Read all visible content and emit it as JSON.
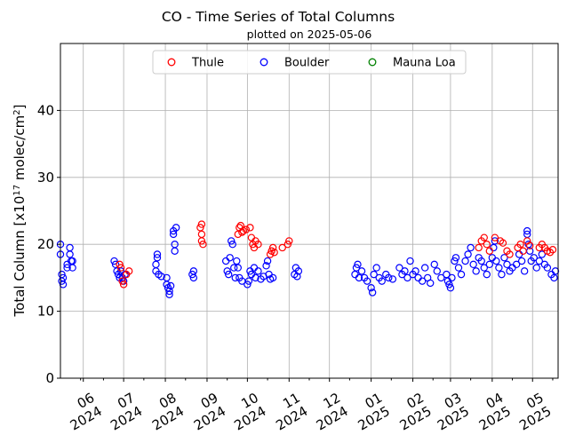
{
  "chart_data": {
    "type": "scatter",
    "title": "CO - Time Series of Total Columns",
    "subtitle": "plotted on 2025-05-06",
    "ylabel": "Total Column [x10",
    "ylabel_sup1": "17",
    "ylabel_mid": " molec/cm",
    "ylabel_sup2": "2",
    "ylabel_end": "]",
    "xlabel": "",
    "ylim": [
      0,
      50
    ],
    "yticks": [
      0,
      10,
      20,
      30,
      40
    ],
    "xlim": [
      "2024-05-15",
      "2025-05-20"
    ],
    "xticks": [
      {
        "date": "2024-06-01",
        "month": "06",
        "year": "2024"
      },
      {
        "date": "2024-07-01",
        "month": "07",
        "year": "2024"
      },
      {
        "date": "2024-08-01",
        "month": "08",
        "year": "2024"
      },
      {
        "date": "2024-09-01",
        "month": "09",
        "year": "2024"
      },
      {
        "date": "2024-10-01",
        "month": "10",
        "year": "2024"
      },
      {
        "date": "2024-11-01",
        "month": "11",
        "year": "2024"
      },
      {
        "date": "2024-12-01",
        "month": "12",
        "year": "2024"
      },
      {
        "date": "2025-01-01",
        "month": "01",
        "year": "2025"
      },
      {
        "date": "2025-02-01",
        "month": "02",
        "year": "2025"
      },
      {
        "date": "2025-03-01",
        "month": "03",
        "year": "2025"
      },
      {
        "date": "2025-04-01",
        "month": "04",
        "year": "2025"
      },
      {
        "date": "2025-05-01",
        "month": "05",
        "year": "2025"
      }
    ],
    "grid": true,
    "legend_position": "top-center",
    "series": [
      {
        "name": "Thule",
        "color": "#ff0000",
        "points": [
          [
            "2024-06-28",
            17.0
          ],
          [
            "2024-06-29",
            16.5
          ],
          [
            "2024-06-30",
            14.5
          ],
          [
            "2024-07-01",
            14.0
          ],
          [
            "2024-07-03",
            15.5
          ],
          [
            "2024-07-05",
            16.0
          ],
          [
            "2024-08-27",
            22.5
          ],
          [
            "2024-08-28",
            21.5
          ],
          [
            "2024-08-28",
            20.5
          ],
          [
            "2024-08-29",
            20.0
          ],
          [
            "2024-08-28",
            23.0
          ],
          [
            "2024-09-24",
            21.5
          ],
          [
            "2024-09-25",
            22.5
          ],
          [
            "2024-09-26",
            22.8
          ],
          [
            "2024-09-27",
            21.8
          ],
          [
            "2024-09-28",
            22.0
          ],
          [
            "2024-09-30",
            22.2
          ],
          [
            "2024-10-03",
            22.5
          ],
          [
            "2024-10-04",
            21.0
          ],
          [
            "2024-10-05",
            20.0
          ],
          [
            "2024-10-06",
            19.5
          ],
          [
            "2024-10-07",
            20.5
          ],
          [
            "2024-10-09",
            20.0
          ],
          [
            "2024-10-18",
            18.5
          ],
          [
            "2024-10-19",
            19.0
          ],
          [
            "2024-10-20",
            19.5
          ],
          [
            "2024-10-21",
            18.8
          ],
          [
            "2024-10-27",
            19.5
          ],
          [
            "2024-10-31",
            20.0
          ],
          [
            "2024-11-01",
            20.5
          ],
          [
            "2025-03-22",
            19.5
          ],
          [
            "2025-03-24",
            20.5
          ],
          [
            "2025-03-26",
            21.0
          ],
          [
            "2025-03-28",
            20.0
          ],
          [
            "2025-03-30",
            19.0
          ],
          [
            "2025-04-03",
            21.0
          ],
          [
            "2025-04-07",
            20.5
          ],
          [
            "2025-04-09",
            20.2
          ],
          [
            "2025-04-12",
            19.0
          ],
          [
            "2025-04-14",
            18.5
          ],
          [
            "2025-04-20",
            19.5
          ],
          [
            "2025-04-22",
            20.0
          ],
          [
            "2025-04-24",
            19.0
          ],
          [
            "2025-04-27",
            20.5
          ],
          [
            "2025-04-29",
            19.8
          ],
          [
            "2025-05-06",
            19.5
          ],
          [
            "2025-05-08",
            20.0
          ],
          [
            "2025-05-10",
            19.5
          ],
          [
            "2025-05-12",
            19.0
          ],
          [
            "2025-05-14",
            18.8
          ],
          [
            "2025-05-16",
            19.2
          ]
        ]
      },
      {
        "name": "Boulder",
        "color": "#0000ff",
        "points": [
          [
            "2024-05-15",
            20.0
          ],
          [
            "2024-05-15",
            18.5
          ],
          [
            "2024-05-16",
            15.5
          ],
          [
            "2024-05-16",
            14.5
          ],
          [
            "2024-05-17",
            14.0
          ],
          [
            "2024-05-17",
            15.0
          ],
          [
            "2024-05-20",
            17.0
          ],
          [
            "2024-05-20",
            16.5
          ],
          [
            "2024-05-22",
            19.5
          ],
          [
            "2024-05-22",
            18.5
          ],
          [
            "2024-05-23",
            17.5
          ],
          [
            "2024-05-24",
            16.5
          ],
          [
            "2024-05-24",
            17.5
          ],
          [
            "2024-06-24",
            17.5
          ],
          [
            "2024-06-25",
            17.0
          ],
          [
            "2024-06-26",
            16.0
          ],
          [
            "2024-06-27",
            15.5
          ],
          [
            "2024-06-28",
            15.0
          ],
          [
            "2024-06-29",
            16.0
          ],
          [
            "2024-06-30",
            15.0
          ],
          [
            "2024-07-01",
            14.5
          ],
          [
            "2024-07-02",
            15.5
          ],
          [
            "2024-07-25",
            16.0
          ],
          [
            "2024-07-25",
            17.0
          ],
          [
            "2024-07-26",
            18.5
          ],
          [
            "2024-07-26",
            18.0
          ],
          [
            "2024-07-27",
            15.5
          ],
          [
            "2024-07-29",
            15.2
          ],
          [
            "2024-08-02",
            15.0
          ],
          [
            "2024-08-02",
            14.0
          ],
          [
            "2024-08-03",
            13.5
          ],
          [
            "2024-08-04",
            13.0
          ],
          [
            "2024-08-04",
            12.5
          ],
          [
            "2024-08-05",
            13.8
          ],
          [
            "2024-08-07",
            22.0
          ],
          [
            "2024-08-07",
            21.5
          ],
          [
            "2024-08-08",
            19.0
          ],
          [
            "2024-08-08",
            20.0
          ],
          [
            "2024-08-09",
            22.5
          ],
          [
            "2024-08-21",
            15.5
          ],
          [
            "2024-08-22",
            16.0
          ],
          [
            "2024-08-22",
            15.0
          ],
          [
            "2024-09-15",
            17.5
          ],
          [
            "2024-09-16",
            16.0
          ],
          [
            "2024-09-17",
            15.5
          ],
          [
            "2024-09-18",
            18.0
          ],
          [
            "2024-09-19",
            20.5
          ],
          [
            "2024-09-20",
            20.0
          ],
          [
            "2024-09-21",
            16.5
          ],
          [
            "2024-09-22",
            15.0
          ],
          [
            "2024-09-23",
            17.5
          ],
          [
            "2024-09-24",
            16.5
          ],
          [
            "2024-09-25",
            15.0
          ],
          [
            "2024-09-27",
            14.5
          ],
          [
            "2024-10-01",
            14.0
          ],
          [
            "2024-10-02",
            14.5
          ],
          [
            "2024-10-03",
            16.0
          ],
          [
            "2024-10-04",
            15.5
          ],
          [
            "2024-10-06",
            16.5
          ],
          [
            "2024-10-07",
            15.0
          ],
          [
            "2024-10-09",
            16.0
          ],
          [
            "2024-10-11",
            14.8
          ],
          [
            "2024-10-13",
            15.2
          ],
          [
            "2024-10-15",
            16.8
          ],
          [
            "2024-10-16",
            17.5
          ],
          [
            "2024-10-17",
            15.5
          ],
          [
            "2024-10-18",
            14.8
          ],
          [
            "2024-10-20",
            15.0
          ],
          [
            "2024-11-05",
            15.5
          ],
          [
            "2024-11-06",
            16.5
          ],
          [
            "2024-11-07",
            15.2
          ],
          [
            "2024-11-08",
            16.0
          ],
          [
            "2024-12-20",
            15.5
          ],
          [
            "2024-12-21",
            16.5
          ],
          [
            "2024-12-22",
            17.0
          ],
          [
            "2024-12-23",
            15.0
          ],
          [
            "2024-12-25",
            16.0
          ],
          [
            "2024-12-27",
            15.0
          ],
          [
            "2024-12-29",
            14.5
          ],
          [
            "2025-01-01",
            13.5
          ],
          [
            "2025-01-02",
            12.8
          ],
          [
            "2025-01-03",
            15.5
          ],
          [
            "2025-01-05",
            16.5
          ],
          [
            "2025-01-07",
            15.0
          ],
          [
            "2025-01-09",
            14.5
          ],
          [
            "2025-01-12",
            15.5
          ],
          [
            "2025-01-14",
            15.0
          ],
          [
            "2025-01-17",
            14.8
          ],
          [
            "2025-01-22",
            16.5
          ],
          [
            "2025-01-24",
            15.5
          ],
          [
            "2025-01-26",
            16.0
          ],
          [
            "2025-01-28",
            15.0
          ],
          [
            "2025-01-30",
            17.5
          ],
          [
            "2025-02-01",
            15.5
          ],
          [
            "2025-02-03",
            16.0
          ],
          [
            "2025-02-05",
            15.0
          ],
          [
            "2025-02-08",
            14.5
          ],
          [
            "2025-02-10",
            16.5
          ],
          [
            "2025-02-12",
            15.0
          ],
          [
            "2025-02-14",
            14.2
          ],
          [
            "2025-02-17",
            17.0
          ],
          [
            "2025-02-19",
            16.0
          ],
          [
            "2025-02-22",
            15.0
          ],
          [
            "2025-02-26",
            15.5
          ],
          [
            "2025-02-27",
            14.5
          ],
          [
            "2025-02-28",
            14.0
          ],
          [
            "2025-03-01",
            13.5
          ],
          [
            "2025-03-02",
            15.0
          ],
          [
            "2025-03-04",
            17.5
          ],
          [
            "2025-03-05",
            18.0
          ],
          [
            "2025-03-07",
            16.5
          ],
          [
            "2025-03-09",
            15.5
          ],
          [
            "2025-03-12",
            17.5
          ],
          [
            "2025-03-14",
            18.5
          ],
          [
            "2025-03-16",
            19.5
          ],
          [
            "2025-03-18",
            17.0
          ],
          [
            "2025-03-20",
            16.0
          ],
          [
            "2025-03-22",
            18.0
          ],
          [
            "2025-03-24",
            17.5
          ],
          [
            "2025-03-26",
            16.5
          ],
          [
            "2025-03-28",
            15.5
          ],
          [
            "2025-03-30",
            17.0
          ],
          [
            "2025-04-01",
            18.0
          ],
          [
            "2025-04-02",
            19.5
          ],
          [
            "2025-04-03",
            20.5
          ],
          [
            "2025-04-04",
            17.5
          ],
          [
            "2025-04-06",
            16.5
          ],
          [
            "2025-04-08",
            15.5
          ],
          [
            "2025-04-10",
            18.0
          ],
          [
            "2025-04-12",
            17.0
          ],
          [
            "2025-04-14",
            16.0
          ],
          [
            "2025-04-16",
            16.5
          ],
          [
            "2025-04-19",
            17.0
          ],
          [
            "2025-04-21",
            18.5
          ],
          [
            "2025-04-23",
            17.5
          ],
          [
            "2025-04-25",
            16.0
          ],
          [
            "2025-04-27",
            21.5
          ],
          [
            "2025-04-27",
            22.0
          ],
          [
            "2025-04-28",
            20.0
          ],
          [
            "2025-04-29",
            19.0
          ],
          [
            "2025-04-30",
            17.5
          ],
          [
            "2025-05-02",
            18.0
          ],
          [
            "2025-05-04",
            16.5
          ],
          [
            "2025-05-06",
            17.5
          ],
          [
            "2025-05-08",
            18.5
          ],
          [
            "2025-05-10",
            17.0
          ],
          [
            "2025-05-12",
            16.5
          ],
          [
            "2025-05-15",
            15.5
          ],
          [
            "2025-05-17",
            15.0
          ],
          [
            "2025-05-18",
            16.0
          ]
        ]
      },
      {
        "name": "Mauna Loa",
        "color": "#008000",
        "points": []
      }
    ]
  }
}
